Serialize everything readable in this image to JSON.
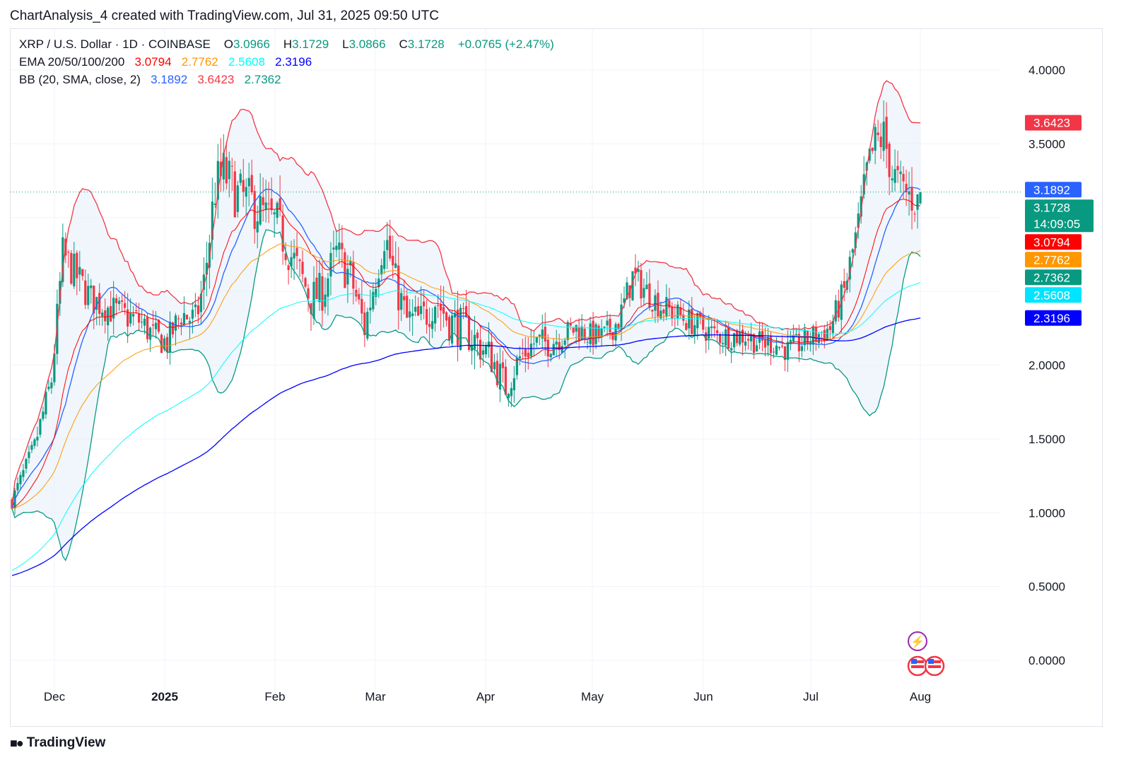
{
  "header": {
    "title": "ChartAnalysis_4 created with TradingView.com, Jul 31, 2025 09:50 UTC"
  },
  "legend": {
    "symbol": "XRP / U.S. Dollar · 1D · COINBASE",
    "o_label": "O",
    "o_value": "3.0966",
    "h_label": "H",
    "h_value": "3.1729",
    "l_label": "L",
    "l_value": "3.0866",
    "c_label": "C",
    "c_value": "3.1728",
    "change": "+0.0765 (+2.47%)",
    "ema_label": "EMA 20/50/100/200",
    "ema20": "3.0794",
    "ema50": "2.7762",
    "ema100": "2.5608",
    "ema200": "2.3196",
    "bb_label": "BB (20, SMA, close, 2)",
    "bb_basis": "3.1892",
    "bb_upper": "3.6423",
    "bb_lower": "2.7362"
  },
  "footer": {
    "brand": "TradingView"
  },
  "colors": {
    "up": "#089981",
    "down": "#f23645",
    "ema20": "#ff0000",
    "ema50": "#ff9800",
    "ema100": "#00ffff",
    "ema200": "#0000ff",
    "bb_basis": "#2962ff",
    "bb_upper": "#f23645",
    "bb_lower": "#089981",
    "bb_fill": "#e3eefa"
  },
  "chart_data": {
    "type": "candlestick",
    "y_ticks": [
      "4.0000",
      "3.5000",
      "2.0000",
      "1.5000",
      "1.0000",
      "0.5000",
      "0.0000"
    ],
    "x_ticks": [
      {
        "label": "Dec",
        "bold": false
      },
      {
        "label": "2025",
        "bold": true
      },
      {
        "label": "Feb",
        "bold": false
      },
      {
        "label": "Mar",
        "bold": false
      },
      {
        "label": "Apr",
        "bold": false
      },
      {
        "label": "May",
        "bold": false
      },
      {
        "label": "Jun",
        "bold": false
      },
      {
        "label": "Jul",
        "bold": false
      },
      {
        "label": "Aug",
        "bold": false
      }
    ],
    "price_labels": [
      {
        "text": "3.6423",
        "value": 3.6423,
        "color": "#f23645"
      },
      {
        "text": "3.1892",
        "value": 3.1892,
        "color": "#2962ff"
      },
      {
        "text": "3.1728",
        "value": 3.1728,
        "color": "#089981",
        "sub": "14:09:05"
      },
      {
        "text": "3.0794",
        "value": 3.0794,
        "color": "#ff0000"
      },
      {
        "text": "2.7762",
        "value": 2.7762,
        "color": "#ff9800"
      },
      {
        "text": "2.7362",
        "value": 2.7362,
        "color": "#089981"
      },
      {
        "text": "2.5608",
        "value": 2.5608,
        "color": "#00e5ff"
      },
      {
        "text": "2.3196",
        "value": 2.3196,
        "color": "#0000ff"
      }
    ],
    "last_price": 3.1728,
    "series_keypoints": {
      "close": [
        [
          0,
          1.08
        ],
        [
          8,
          1.45
        ],
        [
          14,
          1.9
        ],
        [
          18,
          2.75
        ],
        [
          23,
          2.6
        ],
        [
          28,
          2.45
        ],
        [
          33,
          2.4
        ],
        [
          38,
          2.35
        ],
        [
          45,
          2.3
        ],
        [
          50,
          2.2
        ],
        [
          55,
          2.15
        ],
        [
          60,
          2.35
        ],
        [
          65,
          2.3
        ],
        [
          68,
          2.55
        ],
        [
          72,
          3.2
        ],
        [
          75,
          3.3
        ],
        [
          80,
          3.15
        ],
        [
          85,
          3.1
        ],
        [
          90,
          3.0
        ],
        [
          94,
          2.95
        ],
        [
          100,
          2.7
        ],
        [
          106,
          2.45
        ],
        [
          110,
          2.5
        ],
        [
          115,
          2.75
        ],
        [
          120,
          2.6
        ],
        [
          125,
          2.25
        ],
        [
          132,
          2.9
        ],
        [
          136,
          2.55
        ],
        [
          140,
          2.3
        ],
        [
          145,
          2.3
        ],
        [
          150,
          2.45
        ],
        [
          155,
          2.3
        ],
        [
          160,
          2.25
        ],
        [
          165,
          2.15
        ],
        [
          170,
          2.05
        ],
        [
          175,
          1.85
        ],
        [
          180,
          2.05
        ],
        [
          185,
          2.15
        ],
        [
          190,
          2.15
        ],
        [
          195,
          2.2
        ],
        [
          200,
          2.25
        ],
        [
          205,
          2.2
        ],
        [
          210,
          2.2
        ],
        [
          215,
          2.3
        ],
        [
          220,
          2.6
        ],
        [
          225,
          2.5
        ],
        [
          230,
          2.4
        ],
        [
          235,
          2.35
        ],
        [
          240,
          2.3
        ],
        [
          245,
          2.25
        ],
        [
          250,
          2.2
        ],
        [
          255,
          2.2
        ],
        [
          260,
          2.2
        ],
        [
          265,
          2.15
        ],
        [
          270,
          2.15
        ],
        [
          275,
          2.1
        ],
        [
          280,
          2.15
        ],
        [
          285,
          2.2
        ],
        [
          290,
          2.25
        ],
        [
          295,
          2.5
        ],
        [
          300,
          2.95
        ],
        [
          303,
          3.3
        ],
        [
          306,
          3.5
        ],
        [
          309,
          3.55
        ],
        [
          312,
          3.3
        ],
        [
          315,
          3.2
        ],
        [
          318,
          3.15
        ],
        [
          321,
          3.1
        ],
        [
          322,
          3.17
        ]
      ]
    },
    "volatility_keypoints": [
      [
        0,
        0.06
      ],
      [
        60,
        0.06
      ],
      [
        70,
        0.07
      ],
      [
        120,
        0.07
      ],
      [
        170,
        0.08
      ],
      [
        200,
        0.05
      ],
      [
        290,
        0.05
      ],
      [
        322,
        0.06
      ]
    ],
    "ylim": [
      -0.15,
      4.3
    ],
    "x_range_days": [
      0,
      322
    ]
  }
}
